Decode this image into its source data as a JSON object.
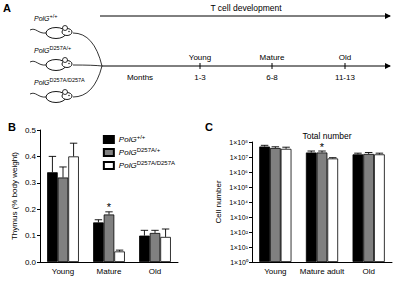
{
  "diagram": {
    "panel": "A",
    "title": "T cell development",
    "genotypes": [
      "PolG+/+",
      "PolGD257A/+",
      "PolGD257A/D257A"
    ],
    "stages": [
      "Young",
      "Mature",
      "Old"
    ],
    "months_label": "Months",
    "months": [
      "1-3",
      "6-8",
      "11-13"
    ]
  },
  "chart_data": [
    {
      "type": "bar",
      "panel": "B",
      "ylabel": "Thymus (% body weight)",
      "categories": [
        "Young",
        "Mature",
        "Old"
      ],
      "series": [
        {
          "name": "PolG+/+",
          "color": "#000000",
          "values": [
            0.34,
            0.15,
            0.1
          ],
          "errors": [
            0.06,
            0.01,
            0.02
          ]
        },
        {
          "name": "PolGD257A/+",
          "color": "#808080",
          "values": [
            0.32,
            0.18,
            0.11
          ],
          "errors": [
            0.04,
            0.01,
            0.01
          ]
        },
        {
          "name": "PolGD257A/D257A",
          "color": "#ffffff",
          "values": [
            0.4,
            0.04,
            0.095
          ],
          "errors": [
            0.05,
            0.005,
            0.03
          ]
        }
      ],
      "ylim": [
        0,
        0.5
      ],
      "yticks": [
        {
          "value": 0,
          "label": "0.0"
        },
        0.1,
        0.2,
        0.3,
        0.4,
        0.5
      ],
      "grid": false,
      "legend": "upper right",
      "annotations": [
        {
          "text": "*",
          "category": "Mature"
        }
      ]
    },
    {
      "type": "bar",
      "panel": "C",
      "title": "Total number",
      "ylabel": "Cell number",
      "categories": [
        "Young",
        "Mature adult",
        "Old"
      ],
      "series": [
        {
          "name": "PolG+/+",
          "color": "#000000",
          "values": [
            50000000,
            20000000,
            15000000
          ],
          "errors": [
            10000000,
            5000000,
            3000000
          ]
        },
        {
          "name": "PolGD257A/+",
          "color": "#808080",
          "values": [
            40000000,
            20000000,
            16000000
          ],
          "errors": [
            8000000,
            5000000,
            4000000
          ]
        },
        {
          "name": "PolGD257A/D257A",
          "color": "#ffffff",
          "values": [
            35000000,
            8000000,
            15000000
          ],
          "errors": [
            10000000,
            1000000,
            3000000
          ]
        }
      ],
      "log": "y",
      "ylim": [
        1,
        100000000
      ],
      "yticks": [
        {
          "value": 1,
          "label": "1×10⁰"
        },
        {
          "value": 10,
          "label": "1×10¹"
        },
        {
          "value": 100,
          "label": "1×10²"
        },
        {
          "value": 1000,
          "label": "1×10³"
        },
        {
          "value": 10000,
          "label": "1×10⁴"
        },
        {
          "value": 100000,
          "label": "1×10⁵"
        },
        {
          "value": 1000000,
          "label": "1×10⁶"
        },
        {
          "value": 10000000,
          "label": "1×10⁷"
        },
        {
          "value": 100000000,
          "label": "1×10⁸"
        }
      ],
      "grid": false,
      "annotations": [
        {
          "text": "*",
          "category": "Mature adult"
        }
      ]
    }
  ]
}
